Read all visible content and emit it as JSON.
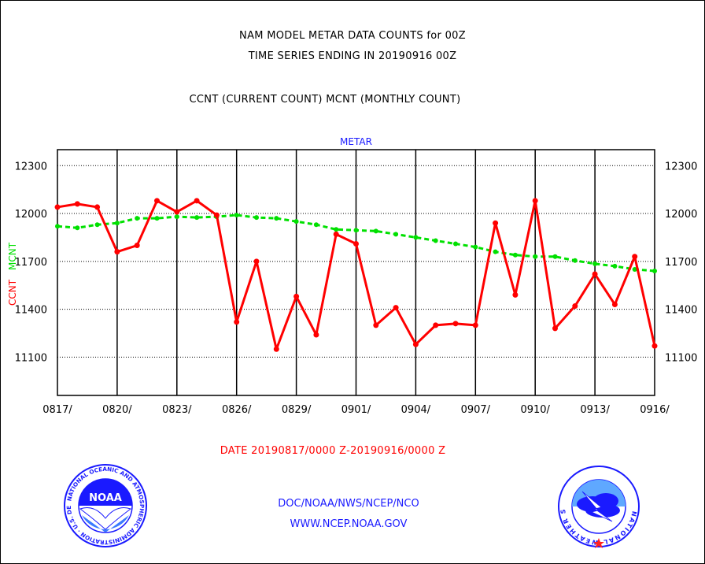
{
  "header": {
    "line1": "NAM MODEL METAR DATA COUNTS for 00Z",
    "line2": "TIME SERIES ENDING IN 20190916 00Z",
    "line3": "CCNT (CURRENT COUNT) MCNT (MONTHLY COUNT)"
  },
  "footer": {
    "date_range": "DATE 20190817/0000 Z-20190916/0000 Z",
    "org_path": "DOC/NOAA/NWS/NCEP/NCO",
    "website": "WWW.NCEP.NOAA.GOV"
  },
  "logos": {
    "left_text": "NOAA",
    "left_ring_text": "NATIONAL OCEANIC AND ATMOSPHERIC ADMINISTRATION · U.S. DEPARTMENT OF COMMERCE",
    "right_ring_text": "NATIONAL WEATHER SERVICE"
  },
  "colors": {
    "ccnt": "#ff0000",
    "mcnt": "#00e000",
    "title_blue": "#1a1aff"
  },
  "chart_data": {
    "type": "line",
    "title": "METAR",
    "ylabel_ccnt": "CCNT",
    "ylabel_mcnt": "MCNT",
    "ylim": [
      10860,
      12400
    ],
    "yticks": [
      11100,
      11400,
      11700,
      12000,
      12300
    ],
    "ytick_labels": [
      "11100",
      "11400",
      "11700",
      "12000",
      "12300"
    ],
    "xtick_labels": [
      "0817/",
      "0820/",
      "0823/",
      "0826/",
      "0829/",
      "0901/",
      "0904/",
      "0907/",
      "0910/",
      "0913/",
      "0916/"
    ],
    "x": [
      "20190817",
      "20190818",
      "20190819",
      "20190820",
      "20190821",
      "20190822",
      "20190823",
      "20190824",
      "20190825",
      "20190826",
      "20190827",
      "20190828",
      "20190829",
      "20190830",
      "20190831",
      "20190901",
      "20190902",
      "20190903",
      "20190904",
      "20190905",
      "20190906",
      "20190907",
      "20190908",
      "20190909",
      "20190910",
      "20190911",
      "20190912",
      "20190913",
      "20190914",
      "20190915",
      "20190916"
    ],
    "grid": true,
    "series": [
      {
        "name": "CCNT",
        "values": [
          12040,
          12060,
          12040,
          11760,
          11800,
          12080,
          12010,
          12080,
          11990,
          11320,
          11700,
          11150,
          11480,
          11240,
          11870,
          11810,
          11300,
          11410,
          11180,
          11300,
          11310,
          11300,
          11940,
          11490,
          12080,
          11280,
          11420,
          11620,
          11430,
          11730,
          11170
        ]
      },
      {
        "name": "MCNT",
        "values": [
          11920,
          11910,
          11930,
          11940,
          11970,
          11970,
          11980,
          11975,
          11980,
          11990,
          11975,
          11970,
          11950,
          11930,
          11900,
          11895,
          11890,
          11870,
          11850,
          11830,
          11810,
          11790,
          11760,
          11740,
          11730,
          11730,
          11705,
          11685,
          11670,
          11650,
          11640
        ]
      }
    ]
  }
}
